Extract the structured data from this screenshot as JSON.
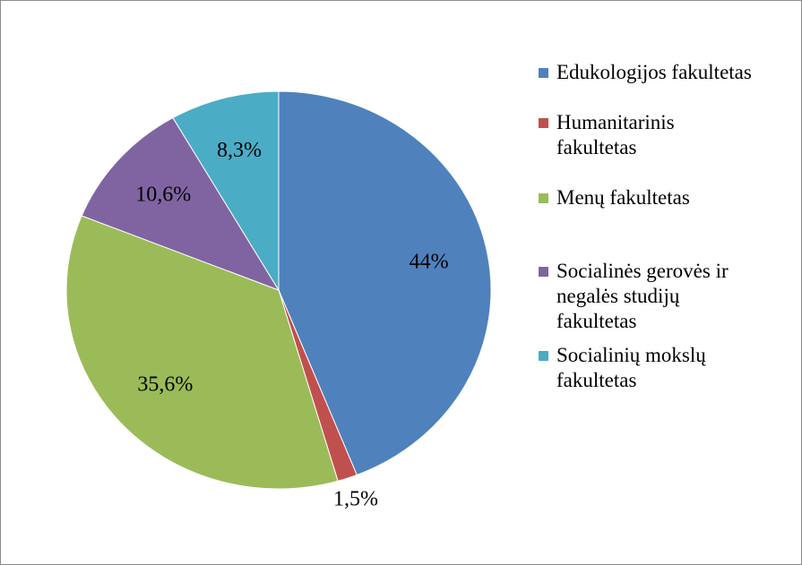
{
  "chart_data": {
    "type": "pie",
    "categories": [
      "Edukologijos fakultetas",
      "Humanitarinis fakultetas",
      "Menų fakultetas",
      "Socialinės gerovės ir negalės studijų fakultetas",
      "Socialinių mokslų fakultetas"
    ],
    "values": [
      44,
      1.5,
      35.6,
      10.6,
      8.3
    ],
    "value_labels": [
      "44%",
      "1,5%",
      "35,6%",
      "10,6%",
      "8,3%"
    ],
    "colors": [
      "#4f81bd",
      "#c0504d",
      "#9bbb59",
      "#8064a2",
      "#4bacc6"
    ],
    "legend": "right"
  }
}
